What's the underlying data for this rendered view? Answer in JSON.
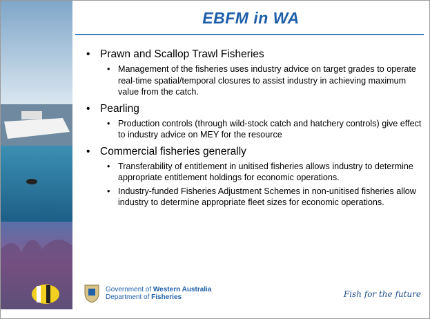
{
  "title": "EBFM in WA",
  "bullets": [
    {
      "text": "Prawn and Scallop Trawl Fisheries",
      "subs": [
        "Management of the fisheries uses industry advice on target grades to operate real-time spatial/temporal closures to assist industry in achieving maximum value from the catch."
      ]
    },
    {
      "text": "Pearling",
      "subs": [
        "Production controls (through wild-stock catch and hatchery controls) give effect to industry advice on MEY for the resource"
      ]
    },
    {
      "text": "Commercial fisheries generally",
      "subs": [
        "Transferability of entitlement in unitised fisheries allows industry to determine appropriate entitlement holdings for economic operations.",
        "Industry-funded Fisheries Adjustment Schemes in non-unitised fisheries allow industry to determine appropriate fleet sizes for economic operations."
      ]
    }
  ],
  "footer": {
    "gov_line": {
      "prefix": "Government of ",
      "emphasis": "Western Australia"
    },
    "dept_line": {
      "prefix": "Department of ",
      "emphasis": "Fisheries"
    },
    "slogan": "Fish for the future"
  }
}
